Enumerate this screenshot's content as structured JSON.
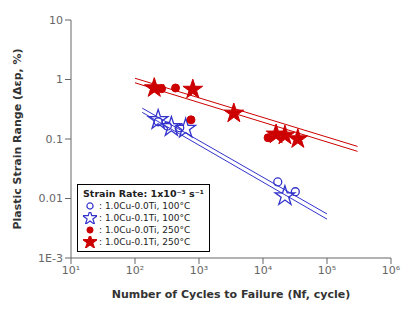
{
  "chart_data": {
    "type": "scatter",
    "xlabel": "Number of Cycles to Failure (Nf, cycle)",
    "ylabel": "Plastic Strain Range (Δεp, %)",
    "log": true,
    "legend": "lower left",
    "legend_title": "Strain Rate: 1x10⁻³ s⁻¹",
    "xlim": [
      10,
      1000000
    ],
    "ylim": [
      0.001,
      10
    ],
    "xticks": [
      {
        "value": 10,
        "label": "10¹"
      },
      {
        "value": 100,
        "label": "10²"
      },
      {
        "value": 1000,
        "label": "10³"
      },
      {
        "value": 10000,
        "label": "10⁴"
      },
      {
        "value": 100000,
        "label": "10⁵"
      },
      {
        "value": 1000000,
        "label": "10⁶"
      }
    ],
    "yticks": [
      {
        "value": 0.001,
        "label": "1E-3"
      },
      0.01,
      0.1,
      1,
      10
    ],
    "series": [
      {
        "name": ": 1.0Cu-0.0Ti, 100°C",
        "type": "scatter",
        "color": "#3333cc",
        "marker": "open_circle",
        "x": [
          230,
          320,
          500,
          17000,
          32000
        ],
        "values": [
          0.195,
          0.165,
          0.155,
          0.019,
          0.013
        ]
      },
      {
        "name": ": 1.0Cu-0.1Ti, 100°C",
        "type": "scatter",
        "color": "#3333cc",
        "marker": "open_star",
        "x": [
          230,
          370,
          620,
          22000
        ],
        "values": [
          0.21,
          0.16,
          0.15,
          0.011
        ]
      },
      {
        "name": ": 1.0Cu-0.0Ti, 250°C",
        "type": "scatter",
        "color": "#cc0000",
        "marker": "circle",
        "x": [
          200,
          260,
          430,
          750,
          12000
        ],
        "values": [
          0.72,
          0.7,
          0.72,
          0.21,
          0.105
        ]
      },
      {
        "name": ": 1.0Cu-0.1Ti, 250°C",
        "type": "scatter",
        "color": "#cc0000",
        "marker": "star",
        "x": [
          200,
          800,
          3500,
          16000,
          22000,
          35000
        ],
        "values": [
          0.72,
          0.68,
          0.27,
          0.12,
          0.115,
          0.1
        ]
      },
      {
        "type": "line",
        "color": "#3333cc",
        "x": [
          130,
          100000
        ],
        "values": [
          0.33,
          0.0055
        ]
      },
      {
        "type": "line",
        "color": "#3333cc",
        "x": [
          130,
          100000
        ],
        "values": [
          0.28,
          0.0045
        ]
      },
      {
        "type": "line",
        "color": "#cc0000",
        "x": [
          100,
          300000
        ],
        "values": [
          1.05,
          0.075
        ]
      },
      {
        "type": "line",
        "color": "#cc0000",
        "x": [
          100,
          300000
        ],
        "values": [
          0.88,
          0.062
        ]
      }
    ]
  }
}
